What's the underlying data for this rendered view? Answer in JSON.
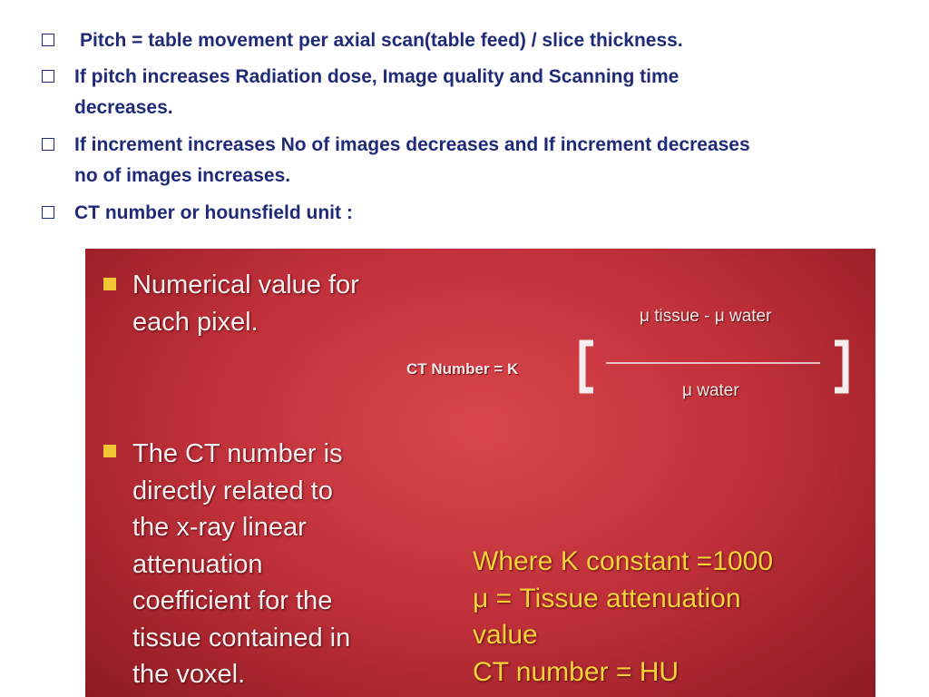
{
  "bullets": [
    {
      "lines": [
        "Pitch  = table movement per axial scan(table feed) / slice thickness."
      ]
    },
    {
      "lines": [
        "If pitch increases Radiation dose, Image quality and Scanning time",
        "decreases."
      ]
    },
    {
      "lines": [
        "If increment increases No of images decreases and If increment decreases",
        "no of images increases."
      ]
    },
    {
      "lines": [
        "CT number  or hounsfield unit :"
      ]
    }
  ],
  "image": {
    "points": [
      {
        "lines": [
          "Numerical value for",
          "each pixel."
        ]
      },
      {
        "lines": [
          "The CT number is",
          "directly related to",
          "the x-ray linear",
          "attenuation",
          "coefficient for the",
          "tissue contained in",
          "the voxel."
        ]
      }
    ],
    "formula": {
      "lhs": "CT Number = K",
      "numerator": "μ tissue - μ water",
      "denominator": "μ water"
    },
    "notes": {
      "lines": [
        "Where K constant =1000",
        "μ = Tissue attenuation",
        "value",
        "CT number = HU"
      ]
    }
  }
}
